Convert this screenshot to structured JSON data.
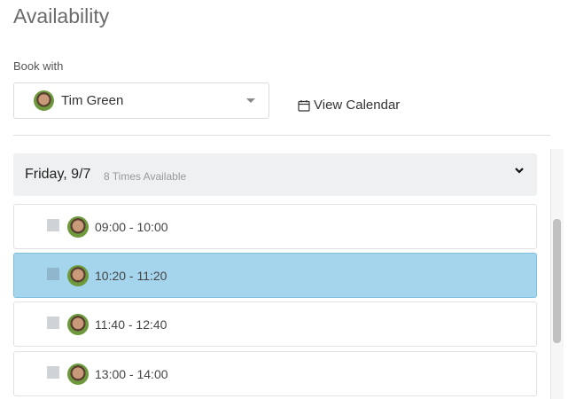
{
  "page": {
    "title": "Availability",
    "book_with_label": "Book with"
  },
  "selector": {
    "selected": "Tim Green",
    "icon": "avatar"
  },
  "view_calendar": {
    "label": "View Calendar",
    "icon": "calendar-icon"
  },
  "day": {
    "label": "Friday, 9/7",
    "count": "8 Times Available",
    "icon": "chevron-down-icon"
  },
  "slots": [
    {
      "time": "09:00 - 10:00",
      "selected": false
    },
    {
      "time": "10:20 - 11:20",
      "selected": true
    },
    {
      "time": "11:40 - 12:40",
      "selected": false
    },
    {
      "time": "13:00 - 14:00",
      "selected": false
    }
  ],
  "colors": {
    "selected_row": "#a5d5ec",
    "header_bg": "#eff0f2"
  }
}
